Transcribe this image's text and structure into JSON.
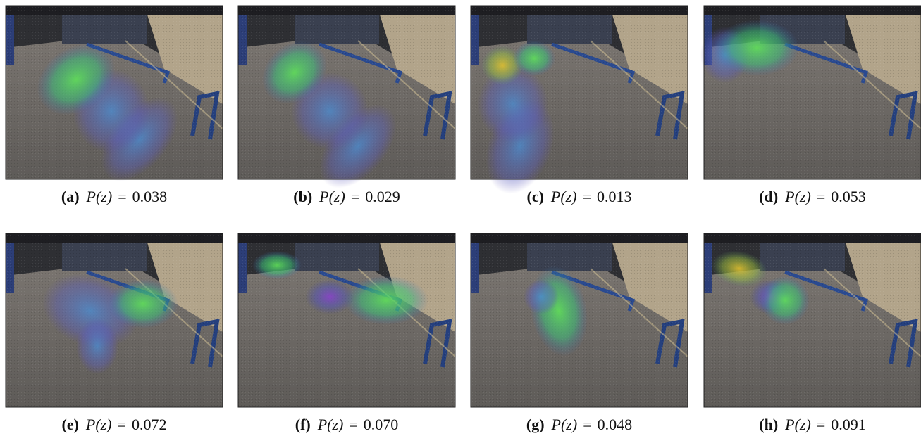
{
  "figure": {
    "panels": [
      {
        "label": "(a)",
        "var": "P(z)",
        "rel": "=",
        "value": "0.038"
      },
      {
        "label": "(b)",
        "var": "P(z)",
        "rel": "=",
        "value": "0.029"
      },
      {
        "label": "(c)",
        "var": "P(z)",
        "rel": "=",
        "value": "0.013"
      },
      {
        "label": "(d)",
        "var": "P(z)",
        "rel": "=",
        "value": "0.053"
      },
      {
        "label": "(e)",
        "var": "P(z)",
        "rel": "=",
        "value": "0.072"
      },
      {
        "label": "(f)",
        "var": "P(z)",
        "rel": "=",
        "value": "0.070"
      },
      {
        "label": "(g)",
        "var": "P(z)",
        "rel": "=",
        "value": "0.048"
      },
      {
        "label": "(h)",
        "var": "P(z)",
        "rel": "=",
        "value": "0.091"
      }
    ]
  }
}
